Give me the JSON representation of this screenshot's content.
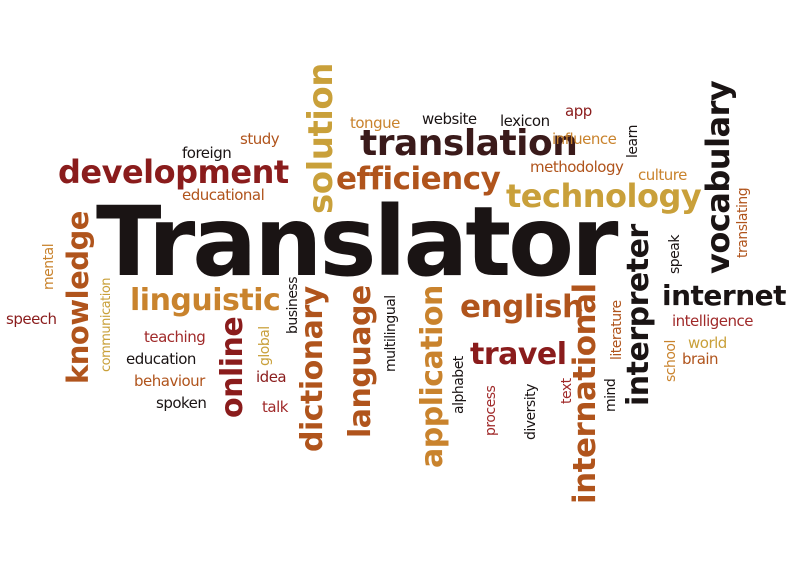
{
  "colors": {
    "dark": "#1a1414",
    "maroon": "#8a1c1c",
    "rust": "#b0541c",
    "orange": "#c9832d",
    "gold": "#c9a03a",
    "crimson": "#a02a2a"
  },
  "words": {
    "translator": "Translator",
    "translation": "translation",
    "development": "development",
    "efficiency": "efficiency",
    "technology": "technology",
    "linguistic": "linguistic",
    "english": "english",
    "internet": "internet",
    "travel": "travel",
    "solution": "solution",
    "knowledge": "knowledge",
    "online": "online",
    "dictionary": "dictionary",
    "language": "language",
    "application": "application",
    "international": "international",
    "interpreter": "interpreter",
    "vocabulary": "vocabulary",
    "foreign": "foreign",
    "study": "study",
    "educational": "educational",
    "tongue": "tongue",
    "website": "website",
    "lexicon": "lexicon",
    "app": "app",
    "influence": "influence",
    "methodology": "methodology",
    "culture": "culture",
    "learn": "learn",
    "translating": "translating",
    "speak": "speak",
    "mental": "mental",
    "speech": "speech",
    "communication": "communication",
    "teaching": "teaching",
    "education": "education",
    "behaviour": "behaviour",
    "spoken": "spoken",
    "global": "global",
    "idea": "idea",
    "talk": "talk",
    "business": "business",
    "multilingual": "multilingual",
    "alphabet": "alphabet",
    "process": "process",
    "diversity": "diversity",
    "text": "text",
    "mind": "mind",
    "literature": "literature",
    "school": "school",
    "intelligence": "intelligence",
    "world": "world",
    "brain": "brain"
  }
}
